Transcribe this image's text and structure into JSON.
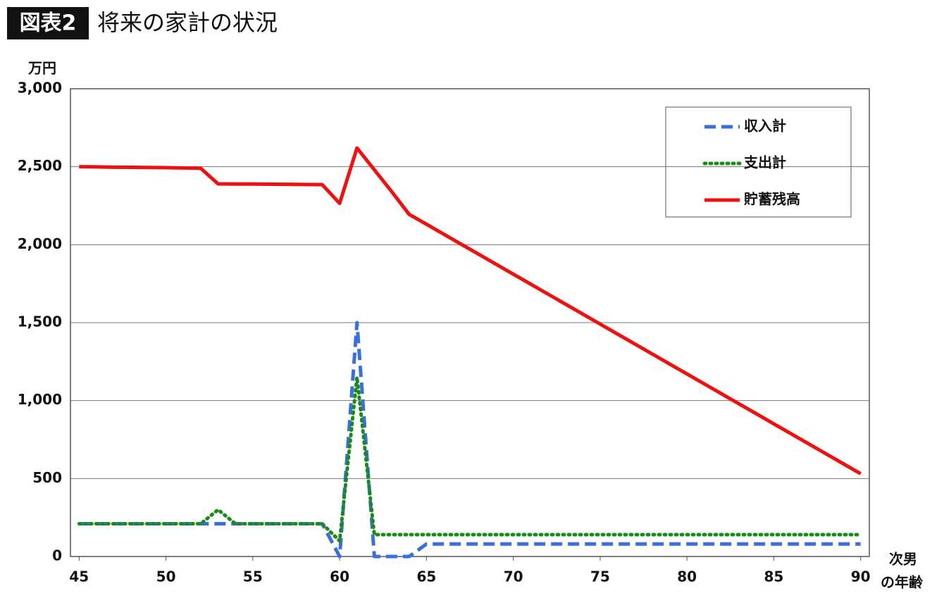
{
  "chart_data": {
    "type": "line",
    "badge": "図表2",
    "title": "将来の家計の状況",
    "y_unit": "万円",
    "x_label": [
      "次男",
      "の年齢"
    ],
    "x": [
      45,
      46,
      47,
      48,
      49,
      50,
      51,
      52,
      53,
      54,
      55,
      56,
      57,
      58,
      59,
      60,
      61,
      62,
      63,
      64,
      65,
      66,
      67,
      68,
      69,
      70,
      71,
      72,
      73,
      74,
      75,
      76,
      77,
      78,
      79,
      80,
      81,
      82,
      83,
      84,
      85,
      86,
      87,
      88,
      89,
      90
    ],
    "xlim": [
      44.5,
      90.5
    ],
    "xticks": [
      45,
      50,
      55,
      60,
      65,
      70,
      75,
      80,
      85,
      90
    ],
    "ylim": [
      0,
      3000
    ],
    "yticks": [
      0,
      500,
      {
        "value": 1000,
        "label": "1,000"
      },
      {
        "value": 1500,
        "label": "1,500"
      },
      {
        "value": 2000,
        "label": "2,000"
      },
      {
        "value": 2500,
        "label": "2,500"
      },
      {
        "value": 3000,
        "label": "3,000"
      }
    ],
    "grid": true,
    "series": [
      {
        "name": "収入計",
        "color": "#3a6fe0",
        "dash": "dashed",
        "values": [
          210,
          210,
          210,
          210,
          210,
          210,
          210,
          210,
          210,
          210,
          210,
          210,
          210,
          210,
          210,
          0,
          1500,
          0,
          0,
          0,
          80,
          80,
          80,
          80,
          80,
          80,
          80,
          80,
          80,
          80,
          80,
          80,
          80,
          80,
          80,
          80,
          80,
          80,
          80,
          80,
          80,
          80,
          80,
          80,
          80,
          80
        ]
      },
      {
        "name": "支出計",
        "color": "#1a8a1a",
        "dash": "dotted",
        "values": [
          210,
          210,
          210,
          210,
          210,
          210,
          210,
          210,
          300,
          210,
          210,
          210,
          210,
          210,
          210,
          100,
          1150,
          140,
          140,
          140,
          140,
          140,
          140,
          140,
          140,
          140,
          140,
          140,
          140,
          140,
          140,
          140,
          140,
          140,
          140,
          140,
          140,
          140,
          140,
          140,
          140,
          140,
          140,
          140,
          140,
          140
        ]
      },
      {
        "name": "貯蓄残高",
        "color": "#ee1111",
        "dash": "solid",
        "values": [
          2500,
          2499,
          2497,
          2496,
          2495,
          2494,
          2492,
          2490,
          2390,
          2389,
          2389,
          2388,
          2387,
          2386,
          2385,
          2265,
          2620,
          2480,
          2340,
          2195,
          2131,
          2067,
          2003,
          1939,
          1875,
          1811,
          1747,
          1683,
          1619,
          1555,
          1491,
          1427,
          1363,
          1299,
          1235,
          1171,
          1107,
          1043,
          979,
          915,
          851,
          787,
          723,
          659,
          595,
          531
        ]
      }
    ]
  }
}
